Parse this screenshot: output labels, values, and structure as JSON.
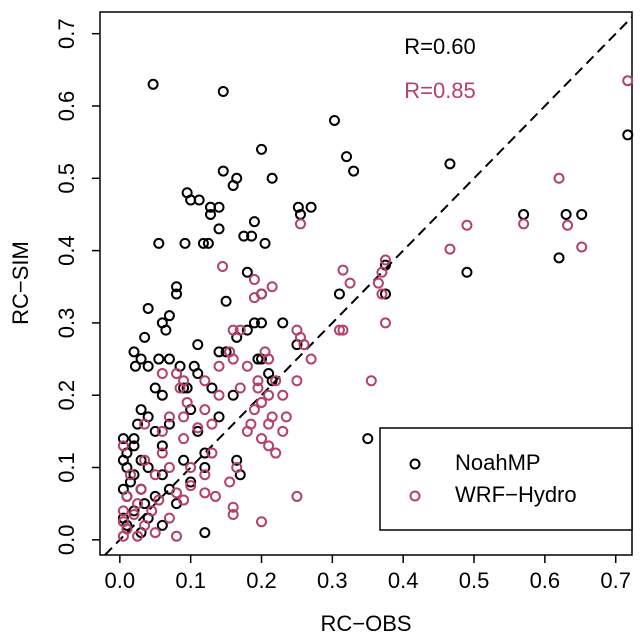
{
  "chart_data": {
    "type": "scatter",
    "x_label": "RC−OBS",
    "y_label": "RC−SIM",
    "xlim": [
      -0.028,
      0.723
    ],
    "ylim": [
      -0.021,
      0.73
    ],
    "xticks": [
      {
        "value": 0,
        "label": "0.0"
      },
      0.1,
      0.2,
      0.3,
      0.4,
      0.5,
      0.6,
      0.7
    ],
    "yticks": [
      {
        "value": 0,
        "label": "0.0"
      },
      0.1,
      0.2,
      0.3,
      0.4,
      0.5,
      0.6,
      0.7
    ],
    "diagonal_line": true,
    "legend_position": "bottomright",
    "annotations": [
      {
        "text": "R=0.60",
        "color": "#000000"
      },
      {
        "text": "R=0.85",
        "color": "#b5406b"
      }
    ],
    "series": [
      {
        "name": "NoahMP",
        "color": "#000000",
        "x": [
          0.047,
          0.146,
          0.717,
          0.303,
          0.2,
          0.32,
          0.33,
          0.466,
          0.146,
          0.165,
          0.16,
          0.215,
          0.095,
          0.1,
          0.112,
          0.128,
          0.14,
          0.128,
          0.252,
          0.27,
          0.255,
          0.57,
          0.63,
          0.652,
          0.19,
          0.14,
          0.186,
          0.055,
          0.092,
          0.118,
          0.125,
          0.175,
          0.205,
          0.62,
          0.375,
          0.49,
          0.18,
          0.08,
          0.08,
          0.2,
          0.375,
          0.31,
          0.15,
          0.04,
          0.07,
          0.06,
          0.065,
          0.19,
          0.2,
          0.23,
          0.18,
          0.165,
          0.035,
          0.11,
          0.25,
          0.02,
          0.14,
          0.15,
          0.03,
          0.055,
          0.07,
          0.195,
          0.2,
          0.022,
          0.04,
          0.085,
          0.105,
          0.11,
          0.21,
          0.215,
          0.05,
          0.09,
          0.095,
          0.13,
          0.06,
          0.16,
          0.03,
          0.1,
          0.14,
          0.04,
          0.025,
          0.07,
          0.05,
          0.11,
          0.02,
          0.005,
          0.02,
          0.06,
          0.12,
          0.01,
          0.005,
          0.03,
          0.09,
          0.12,
          0.01,
          0.04,
          0.06,
          0.02,
          0.1,
          0.015,
          0.03,
          0.07,
          0.005,
          0.05,
          0.01,
          0.035,
          0.08,
          0.02,
          0.04,
          0.005,
          0.06,
          0.01,
          0.03,
          0.12,
          0.35,
          0.17,
          0.165
        ],
        "values": [
          0.63,
          0.62,
          0.56,
          0.58,
          0.54,
          0.53,
          0.51,
          0.52,
          0.51,
          0.5,
          0.49,
          0.5,
          0.48,
          0.47,
          0.47,
          0.46,
          0.46,
          0.45,
          0.46,
          0.46,
          0.45,
          0.45,
          0.45,
          0.45,
          0.44,
          0.43,
          0.42,
          0.41,
          0.41,
          0.41,
          0.41,
          0.42,
          0.41,
          0.39,
          0.38,
          0.37,
          0.37,
          0.35,
          0.34,
          0.34,
          0.34,
          0.34,
          0.33,
          0.32,
          0.31,
          0.3,
          0.29,
          0.3,
          0.3,
          0.3,
          0.29,
          0.28,
          0.28,
          0.27,
          0.27,
          0.26,
          0.26,
          0.26,
          0.25,
          0.25,
          0.25,
          0.25,
          0.25,
          0.24,
          0.24,
          0.24,
          0.24,
          0.23,
          0.23,
          0.22,
          0.21,
          0.21,
          0.21,
          0.21,
          0.2,
          0.2,
          0.18,
          0.18,
          0.17,
          0.17,
          0.16,
          0.16,
          0.15,
          0.15,
          0.14,
          0.14,
          0.13,
          0.13,
          0.12,
          0.12,
          0.11,
          0.11,
          0.11,
          0.1,
          0.1,
          0.1,
          0.09,
          0.09,
          0.08,
          0.08,
          0.07,
          0.07,
          0.07,
          0.06,
          0.06,
          0.05,
          0.05,
          0.04,
          0.03,
          0.03,
          0.02,
          0.02,
          0.01,
          0.01,
          0.14,
          0.09,
          0.11
        ]
      },
      {
        "name": "WRF−Hydro",
        "color": "#b5406b",
        "x": [
          0.717,
          0.62,
          0.49,
          0.57,
          0.632,
          0.652,
          0.466,
          0.375,
          0.37,
          0.365,
          0.37,
          0.325,
          0.315,
          0.255,
          0.145,
          0.19,
          0.2,
          0.19,
          0.215,
          0.375,
          0.31,
          0.315,
          0.25,
          0.255,
          0.26,
          0.16,
          0.17,
          0.155,
          0.16,
          0.27,
          0.205,
          0.21,
          0.06,
          0.08,
          0.14,
          0.18,
          0.09,
          0.12,
          0.195,
          0.22,
          0.25,
          0.355,
          0.085,
          0.17,
          0.195,
          0.21,
          0.095,
          0.14,
          0.2,
          0.23,
          0.12,
          0.19,
          0.215,
          0.235,
          0.07,
          0.09,
          0.13,
          0.11,
          0.185,
          0.21,
          0.23,
          0.035,
          0.06,
          0.18,
          0.09,
          0.2,
          0.21,
          0.005,
          0.06,
          0.13,
          0.22,
          0.035,
          0.07,
          0.1,
          0.165,
          0.015,
          0.05,
          0.12,
          0.155,
          0.1,
          0.03,
          0.08,
          0.12,
          0.01,
          0.055,
          0.09,
          0.135,
          0.25,
          0.025,
          0.16,
          0.045,
          0.005,
          0.02,
          0.16,
          0.07,
          0.005,
          0.035,
          0.2,
          0.01,
          0.05,
          0.08,
          0.005,
          0.025
        ],
        "values": [
          0.635,
          0.5,
          0.435,
          0.437,
          0.435,
          0.405,
          0.402,
          0.387,
          0.37,
          0.355,
          0.34,
          0.355,
          0.373,
          0.437,
          0.378,
          0.36,
          0.34,
          0.335,
          0.35,
          0.3,
          0.29,
          0.29,
          0.29,
          0.28,
          0.27,
          0.29,
          0.29,
          0.26,
          0.25,
          0.25,
          0.26,
          0.25,
          0.23,
          0.23,
          0.24,
          0.24,
          0.22,
          0.22,
          0.22,
          0.22,
          0.22,
          0.22,
          0.21,
          0.21,
          0.21,
          0.2,
          0.19,
          0.2,
          0.19,
          0.2,
          0.18,
          0.18,
          0.17,
          0.17,
          0.17,
          0.17,
          0.16,
          0.155,
          0.16,
          0.16,
          0.15,
          0.16,
          0.15,
          0.15,
          0.14,
          0.14,
          0.13,
          0.13,
          0.12,
          0.12,
          0.12,
          0.11,
          0.1,
          0.1,
          0.1,
          0.09,
          0.09,
          0.09,
          0.08,
          0.075,
          0.07,
          0.065,
          0.065,
          0.06,
          0.055,
          0.055,
          0.06,
          0.06,
          0.05,
          0.045,
          0.04,
          0.04,
          0.035,
          0.035,
          0.03,
          0.025,
          0.02,
          0.025,
          0.015,
          0.01,
          0.005,
          0.005,
          0.005
        ]
      }
    ]
  }
}
